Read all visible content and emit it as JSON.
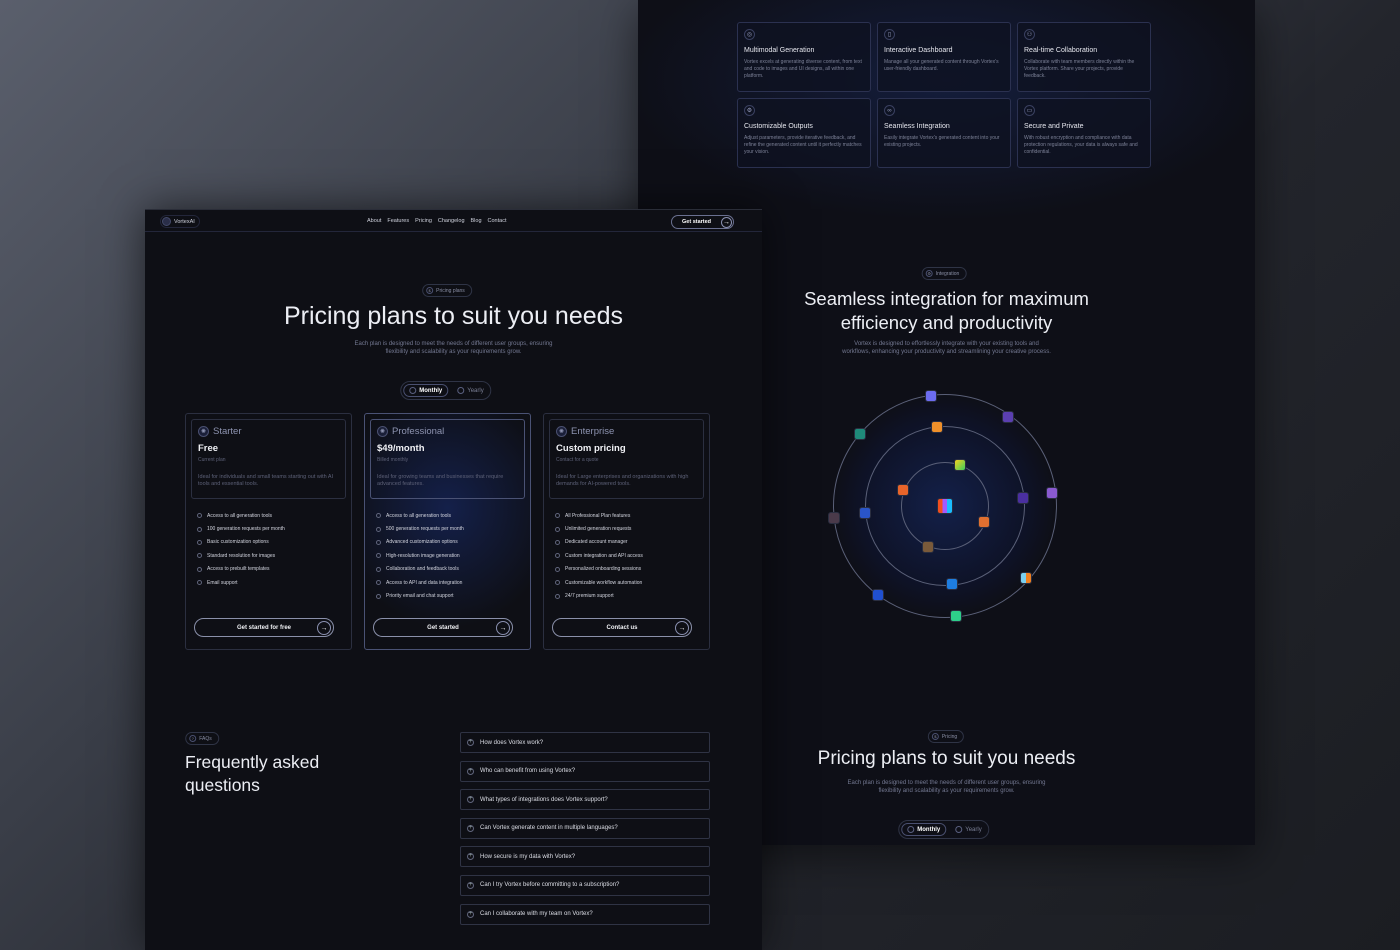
{
  "features": [
    {
      "icon": "layers-icon",
      "title": "Multimodal Generation",
      "desc": "Vortex excels at generating diverse content, from text and code to images and UI designs, all within one platform."
    },
    {
      "icon": "dashboard-icon",
      "title": "Interactive Dashboard",
      "desc": "Manage all your generated content through Vortex's user-friendly dashboard."
    },
    {
      "icon": "users-icon",
      "title": "Real-time Collaboration",
      "desc": "Collaborate with team members directly within the Vortex platform. Share your projects, provide feedback."
    },
    {
      "icon": "settings-icon",
      "title": "Customizable Outputs",
      "desc": "Adjust parameters, provide iterative feedback, and refine the generated content until it perfectly matches your vision."
    },
    {
      "icon": "link-icon",
      "title": "Seamless Integration",
      "desc": "Easily integrate Vortex's generated content into your existing projects."
    },
    {
      "icon": "folder-lock-icon",
      "title": "Secure and Private",
      "desc": "With robust encryption and compliance with data protection regulations, your data is always safe and confidential."
    }
  ],
  "integration": {
    "badge": "Integration",
    "title_line1": "Seamless integration for maximum",
    "title_line2": "efficiency and productivity",
    "subtitle_line1": "Vortex is designed to effortlessly integrate with your existing tools and",
    "subtitle_line2": "workflows, enhancing your productivity and streamlining your creative process."
  },
  "pricing_preview": {
    "badge": "Pricing",
    "title": "Pricing plans to suit you needs",
    "subtitle_line1": "Each plan is designed to meet the needs of different user groups, ensuring",
    "subtitle_line2": "flexibility and scalability as your requirements grow.",
    "monthly": "Monthly",
    "yearly": "Yearly"
  },
  "nav": {
    "logo": "VortexAI",
    "links": [
      "About",
      "Features",
      "Pricing",
      "Changelog",
      "Blog",
      "Contact"
    ],
    "cta": "Get started"
  },
  "hero": {
    "badge": "Pricing plans",
    "title": "Pricing plans to suit you needs",
    "subtitle_line1": "Each plan is designed to meet the needs of different user groups, ensuring",
    "subtitle_line2": "flexibility and scalability as your requirements grow.",
    "monthly": "Monthly",
    "yearly": "Yearly",
    "selected": "Monthly"
  },
  "plans": [
    {
      "name": "Starter",
      "price": "Free",
      "note": "Current plan",
      "desc": "Ideal for individuals and small teams starting out with AI tools and essential tools.",
      "features": [
        "Access to all generation tools",
        "100 generation requests per month",
        "Basic customization options",
        "Standard resolution for images",
        "Access to prebuilt templates",
        "Email support"
      ],
      "button": "Get started for free"
    },
    {
      "name": "Professional",
      "price": "$49/month",
      "note": "Billed monthly",
      "desc": "Ideal for growing teams and businesses that require advanced features.",
      "features": [
        "Access to all generation tools",
        "500 generation requests per month",
        "Advanced customization options",
        "High-resolution image generation",
        "Collaboration and feedback tools",
        "Access to API and data integration",
        "Priority email and chat support"
      ],
      "button": "Get started"
    },
    {
      "name": "Enterprise",
      "price": "Custom pricing",
      "note": "Contact for a quote",
      "desc": "Ideal for Large enterprises and organizations with high demands for AI-powered tools.",
      "features": [
        "All Professional Plan features",
        "Unlimited generation requests",
        "Dedicated account manager",
        "Custom integration and API access",
        "Personalized onboarding sessions",
        "Customizable workflow automation",
        "24/7 premium support"
      ],
      "button": "Contact us"
    }
  ],
  "faq": {
    "badge": "FAQs",
    "title_line1": "Frequently asked",
    "title_line2": "questions",
    "items": [
      "How does Vortex work?",
      "Who can benefit from using Vortex?",
      "What types of integrations does Vortex support?",
      "Can Vortex generate content in multiple languages?",
      "How secure is my data with Vortex?",
      "Can I try Vortex before committing to a subscription?",
      "Can I collaborate with my team on Vortex?"
    ]
  },
  "colors": {
    "background": "#0e0f15",
    "accent_glow": "#14204a",
    "border": "#2b2f40"
  }
}
